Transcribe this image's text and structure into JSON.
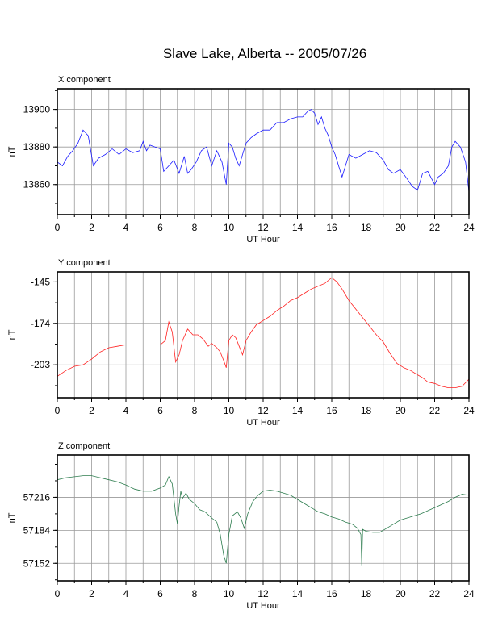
{
  "title": "Slave Lake, Alberta -- 2005/07/26",
  "chart_data": [
    {
      "type": "line",
      "panel_label": "X component",
      "xlabel": "UT Hour",
      "ylabel": "nT",
      "xlim": [
        0,
        24
      ],
      "ylim": [
        13844,
        13911
      ],
      "xticks": [
        0,
        2,
        4,
        6,
        8,
        10,
        12,
        14,
        16,
        18,
        20,
        22,
        24
      ],
      "yticks": [
        13860,
        13880,
        13900
      ],
      "grid": true,
      "color": "#1a1aff",
      "series": [
        {
          "x": [
            0,
            0.3,
            0.6,
            0.9,
            1.2,
            1.5,
            1.8,
            2.1,
            2.4,
            2.8,
            3.2,
            3.6,
            4.0,
            4.4,
            4.8,
            5.0,
            5.2,
            5.4,
            5.7,
            6.0,
            6.2,
            6.5,
            6.8,
            7.1,
            7.4,
            7.6,
            7.8,
            8.1,
            8.4,
            8.7,
            9.0,
            9.3,
            9.6,
            9.85,
            10.0,
            10.2,
            10.4,
            10.6,
            10.8,
            11.0,
            11.3,
            11.6,
            12.0,
            12.4,
            12.8,
            13.2,
            13.6,
            14.0,
            14.3,
            14.6,
            14.8,
            15.0,
            15.2,
            15.4,
            15.6,
            15.8,
            16.0,
            16.2,
            16.4,
            16.6,
            16.8,
            17.0,
            17.4,
            17.8,
            18.2,
            18.6,
            19.0,
            19.3,
            19.6,
            20.0,
            20.4,
            20.7,
            21.0,
            21.3,
            21.6,
            22.0,
            22.2,
            22.5,
            22.8,
            23.0,
            23.2,
            23.5,
            23.8,
            24.0
          ],
          "y": [
            13872,
            13870,
            13875,
            13878,
            13882,
            13889,
            13886,
            13870,
            13874,
            13876,
            13879,
            13876,
            13879,
            13877,
            13878,
            13883,
            13878,
            13881,
            13880,
            13879,
            13867,
            13870,
            13873,
            13866,
            13875,
            13866,
            13868,
            13872,
            13878,
            13880,
            13870,
            13878,
            13872,
            13860,
            13882,
            13880,
            13874,
            13870,
            13876,
            13882,
            13885,
            13887,
            13889,
            13889,
            13893,
            13893,
            13895,
            13896,
            13896,
            13899,
            13900,
            13898,
            13892,
            13896,
            13890,
            13886,
            13880,
            13876,
            13870,
            13864,
            13870,
            13876,
            13874,
            13876,
            13878,
            13877,
            13873,
            13868,
            13866,
            13868,
            13863,
            13859,
            13857,
            13866,
            13867,
            13860,
            13864,
            13866,
            13870,
            13880,
            13883,
            13880,
            13872,
            13856
          ]
        }
      ]
    },
    {
      "type": "line",
      "panel_label": "Y component",
      "xlabel": "UT Hour",
      "ylabel": "nT",
      "xlim": [
        0,
        24
      ],
      "ylim": [
        -226,
        -138
      ],
      "xticks": [
        0,
        2,
        4,
        6,
        8,
        10,
        12,
        14,
        16,
        18,
        20,
        22,
        24
      ],
      "yticks": [
        -145,
        -174,
        -203
      ],
      "grid": true,
      "color": "#ff2222",
      "series": [
        {
          "x": [
            0,
            0.5,
            1.0,
            1.5,
            2.0,
            2.5,
            3.0,
            3.5,
            4.0,
            4.5,
            5.0,
            5.5,
            6.0,
            6.3,
            6.5,
            6.7,
            6.9,
            7.1,
            7.3,
            7.6,
            7.9,
            8.2,
            8.5,
            8.8,
            9.0,
            9.3,
            9.5,
            9.7,
            9.85,
            10.0,
            10.2,
            10.4,
            10.6,
            10.8,
            11.0,
            11.3,
            11.6,
            12.0,
            12.4,
            12.8,
            13.2,
            13.6,
            14.0,
            14.4,
            14.8,
            15.2,
            15.6,
            16.0,
            16.3,
            16.6,
            17.0,
            17.4,
            17.8,
            18.2,
            18.6,
            19.0,
            19.4,
            19.8,
            20.2,
            20.6,
            21.0,
            21.3,
            21.6,
            22.0,
            22.4,
            22.8,
            23.2,
            23.6,
            24.0
          ],
          "y": [
            -211,
            -207,
            -204,
            -203,
            -199,
            -194,
            -191,
            -190,
            -189,
            -189,
            -189,
            -189,
            -189,
            -186,
            -173,
            -180,
            -201,
            -196,
            -186,
            -178,
            -182,
            -182,
            -185,
            -190,
            -188,
            -191,
            -194,
            -200,
            -205,
            -186,
            -182,
            -184,
            -190,
            -196,
            -186,
            -180,
            -175,
            -172,
            -169,
            -165,
            -162,
            -158,
            -156,
            -153,
            -150,
            -148,
            -146,
            -142,
            -145,
            -150,
            -158,
            -164,
            -170,
            -176,
            -182,
            -187,
            -195,
            -202,
            -205,
            -207,
            -210,
            -212,
            -215,
            -216,
            -218,
            -219,
            -219,
            -218,
            -213
          ]
        }
      ]
    },
    {
      "type": "line",
      "panel_label": "Z component",
      "xlabel": "UT Hour",
      "ylabel": "nT",
      "xlim": [
        0,
        24
      ],
      "ylim": [
        57135,
        57257
      ],
      "xticks": [
        0,
        2,
        4,
        6,
        8,
        10,
        12,
        14,
        16,
        18,
        20,
        22,
        24
      ],
      "yticks": [
        57152,
        57184,
        57216
      ],
      "grid": true,
      "color": "#2e7d4f",
      "series": [
        {
          "x": [
            0,
            0.5,
            1.0,
            1.5,
            2.0,
            2.5,
            3.0,
            3.5,
            4.0,
            4.5,
            5.0,
            5.5,
            6.0,
            6.3,
            6.5,
            6.7,
            6.9,
            7.0,
            7.1,
            7.2,
            7.3,
            7.5,
            7.7,
            8.0,
            8.3,
            8.6,
            9.0,
            9.3,
            9.5,
            9.7,
            9.85,
            10.0,
            10.2,
            10.5,
            10.7,
            10.9,
            11.1,
            11.4,
            11.7,
            12.0,
            12.4,
            12.8,
            13.2,
            13.6,
            14.0,
            14.4,
            14.8,
            15.2,
            15.6,
            16.0,
            16.4,
            16.8,
            17.2,
            17.5,
            17.7,
            17.75,
            17.8,
            18.0,
            18.4,
            18.8,
            19.2,
            19.6,
            20.0,
            20.4,
            20.8,
            21.2,
            21.6,
            22.0,
            22.4,
            22.8,
            23.2,
            23.6,
            24.0
          ],
          "y": [
            57233,
            57235,
            57236,
            57237,
            57237,
            57235,
            57233,
            57231,
            57228,
            57224,
            57222,
            57222,
            57225,
            57228,
            57236,
            57229,
            57200,
            57190,
            57208,
            57222,
            57215,
            57220,
            57214,
            57210,
            57204,
            57202,
            57196,
            57192,
            57180,
            57160,
            57152,
            57180,
            57198,
            57202,
            57196,
            57186,
            57200,
            57212,
            57218,
            57222,
            57223,
            57222,
            57220,
            57218,
            57214,
            57210,
            57206,
            57202,
            57200,
            57197,
            57195,
            57192,
            57190,
            57186,
            57180,
            57150,
            57185,
            57183,
            57182,
            57182,
            57186,
            57190,
            57194,
            57196,
            57198,
            57200,
            57203,
            57206,
            57209,
            57212,
            57216,
            57219,
            57218
          ]
        }
      ]
    }
  ]
}
